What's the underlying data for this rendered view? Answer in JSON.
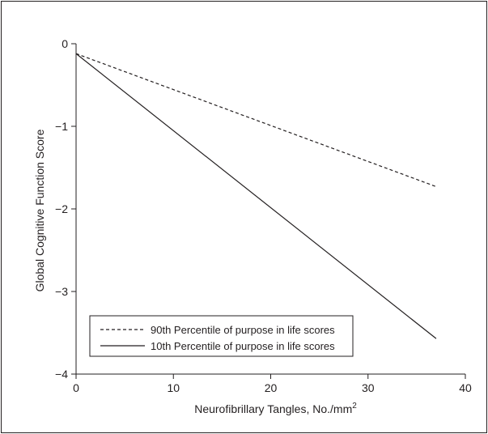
{
  "chart_data": {
    "type": "line",
    "title": "",
    "xlabel": "Neurofibrillary Tangles, No./mm",
    "xlabel_superscript": "2",
    "ylabel": "Global Cognitive Function Score",
    "xlim": [
      0,
      40
    ],
    "ylim": [
      -4,
      0
    ],
    "x_ticks": [
      0,
      10,
      20,
      30,
      40
    ],
    "y_ticks": [
      0,
      -1,
      -2,
      -3,
      -4
    ],
    "x_tick_labels": [
      "0",
      "10",
      "20",
      "30",
      "40"
    ],
    "y_tick_labels": [
      "0",
      "−1",
      "−2",
      "−3",
      "−4"
    ],
    "grid": false,
    "legend_position": "bottom-left",
    "series": [
      {
        "name": "90th Percentile of purpose in life scores",
        "style": "dashed",
        "color": "#231f20",
        "x": [
          0,
          37
        ],
        "y": [
          -0.12,
          -1.73
        ]
      },
      {
        "name": "10th Percentile of purpose in life scores",
        "style": "solid",
        "color": "#231f20",
        "x": [
          0,
          37
        ],
        "y": [
          -0.12,
          -3.57
        ]
      }
    ]
  }
}
